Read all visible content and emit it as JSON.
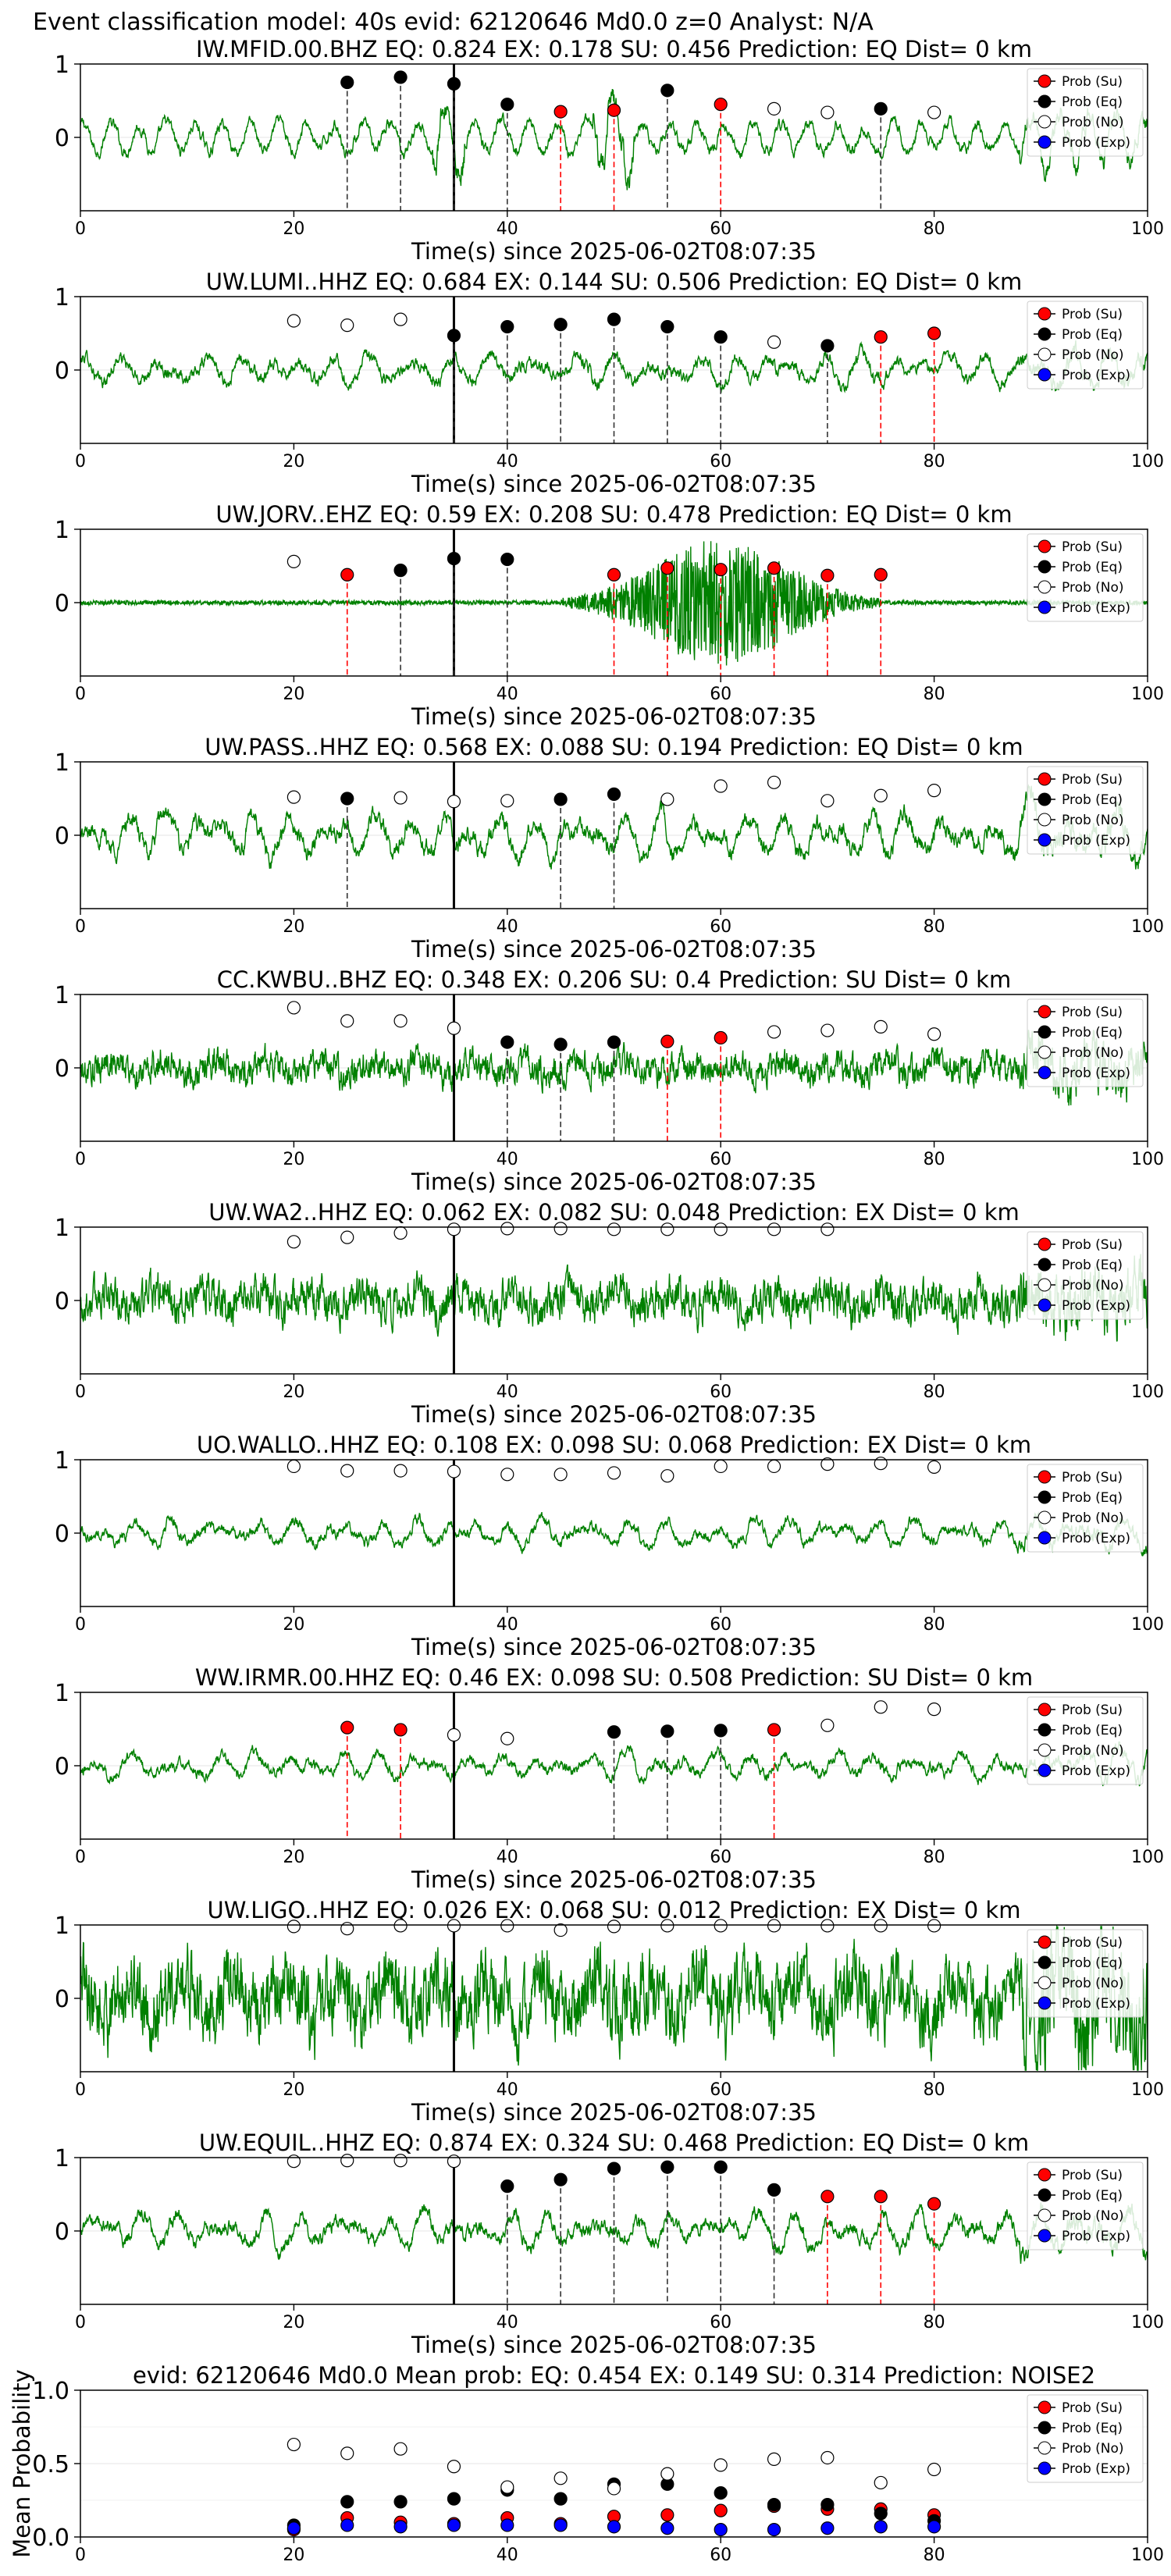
{
  "figure": {
    "suptitle": "Event classification model: 40s evid: 62120646 Md0.0 z=0 Analyst: N/A",
    "xlabel": "Time(s) since 2025-06-02T08:07:35",
    "legend": [
      {
        "label": "Prob (Su)",
        "color": "#ff0000"
      },
      {
        "label": "Prob (Eq)",
        "color": "#000000"
      },
      {
        "label": "Prob (No)",
        "color": "#ffffff"
      },
      {
        "label": "Prob (Exp)",
        "color": "#0000ff"
      }
    ],
    "colors": {
      "waveform": "#008000",
      "su": "#ff0000",
      "eq": "#000000",
      "no": "#ffffff",
      "exp": "#0000ff",
      "pick_line": "#000000"
    }
  },
  "chart_data": [
    {
      "type": "line",
      "title": "IW.MFID.00.BHZ   EQ: 0.824  EX: 0.178  SU: 0.456   Prediction: EQ    Dist= 0 km",
      "xlabel": "Time(s) since 2025-06-02T08:07:35",
      "xlim": [
        0,
        100
      ],
      "ylim": [
        -1,
        1
      ],
      "xticks": [
        0,
        20,
        40,
        60,
        80,
        100
      ],
      "yticks": [
        0,
        1
      ],
      "pick_time": 35,
      "wave_amp": 0.35,
      "wave_style": "mfid",
      "markers": [
        {
          "x": 25,
          "class": "eq",
          "p": 0.75
        },
        {
          "x": 30,
          "class": "eq",
          "p": 0.82
        },
        {
          "x": 35,
          "class": "eq",
          "p": 0.73
        },
        {
          "x": 40,
          "class": "eq",
          "p": 0.45
        },
        {
          "x": 45,
          "class": "su",
          "p": 0.35
        },
        {
          "x": 50,
          "class": "su",
          "p": 0.37
        },
        {
          "x": 55,
          "class": "eq",
          "p": 0.64
        },
        {
          "x": 60,
          "class": "su",
          "p": 0.45
        },
        {
          "x": 65,
          "class": "no",
          "p": 0.39
        },
        {
          "x": 70,
          "class": "no",
          "p": 0.34
        },
        {
          "x": 75,
          "class": "eq",
          "p": 0.39
        },
        {
          "x": 80,
          "class": "no",
          "p": 0.34
        }
      ]
    },
    {
      "type": "line",
      "title": "UW.LUMI..HHZ   EQ: 0.684  EX: 0.144  SU: 0.506   Prediction: EQ    Dist= 0 km",
      "xlabel": "Time(s) since 2025-06-02T08:07:35",
      "xlim": [
        0,
        100
      ],
      "ylim": [
        -1,
        1
      ],
      "xticks": [
        0,
        20,
        40,
        60,
        80,
        100
      ],
      "yticks": [
        0,
        1
      ],
      "pick_time": 35,
      "wave_amp": 0.35,
      "wave_style": "osc",
      "markers": [
        {
          "x": 20,
          "class": "no",
          "p": 0.67
        },
        {
          "x": 25,
          "class": "no",
          "p": 0.61
        },
        {
          "x": 30,
          "class": "no",
          "p": 0.69
        },
        {
          "x": 35,
          "class": "eq",
          "p": 0.47
        },
        {
          "x": 40,
          "class": "eq",
          "p": 0.59
        },
        {
          "x": 45,
          "class": "eq",
          "p": 0.62
        },
        {
          "x": 50,
          "class": "eq",
          "p": 0.69
        },
        {
          "x": 55,
          "class": "eq",
          "p": 0.59
        },
        {
          "x": 60,
          "class": "eq",
          "p": 0.45
        },
        {
          "x": 65,
          "class": "no",
          "p": 0.38
        },
        {
          "x": 70,
          "class": "eq",
          "p": 0.33
        },
        {
          "x": 75,
          "class": "su",
          "p": 0.45
        },
        {
          "x": 80,
          "class": "su",
          "p": 0.5
        }
      ]
    },
    {
      "type": "line",
      "title": "UW.JORV..EHZ   EQ: 0.59  EX: 0.208  SU: 0.478   Prediction: EQ    Dist= 0 km",
      "xlabel": "Time(s) since 2025-06-02T08:07:35",
      "xlim": [
        0,
        100
      ],
      "ylim": [
        -1,
        1
      ],
      "xticks": [
        0,
        20,
        40,
        60,
        80,
        100
      ],
      "yticks": [
        0,
        1
      ],
      "pick_time": 35,
      "wave_amp": 0.9,
      "wave_style": "event",
      "markers": [
        {
          "x": 20,
          "class": "no",
          "p": 0.56
        },
        {
          "x": 25,
          "class": "su",
          "p": 0.38
        },
        {
          "x": 30,
          "class": "eq",
          "p": 0.44
        },
        {
          "x": 35,
          "class": "eq",
          "p": 0.6
        },
        {
          "x": 40,
          "class": "eq",
          "p": 0.59
        },
        {
          "x": 50,
          "class": "su",
          "p": 0.38
        },
        {
          "x": 55,
          "class": "su",
          "p": 0.47
        },
        {
          "x": 60,
          "class": "su",
          "p": 0.45
        },
        {
          "x": 65,
          "class": "su",
          "p": 0.47
        },
        {
          "x": 70,
          "class": "su",
          "p": 0.37
        },
        {
          "x": 75,
          "class": "su",
          "p": 0.38
        }
      ]
    },
    {
      "type": "line",
      "title": "UW.PASS..HHZ   EQ: 0.568  EX: 0.088  SU: 0.194   Prediction: EQ    Dist= 0 km",
      "xlabel": "Time(s) since 2025-06-02T08:07:35",
      "xlim": [
        0,
        100
      ],
      "ylim": [
        -1,
        1
      ],
      "xticks": [
        0,
        20,
        40,
        60,
        80,
        100
      ],
      "yticks": [
        0,
        1
      ],
      "pick_time": 35,
      "wave_amp": 0.5,
      "wave_style": "osc",
      "markers": [
        {
          "x": 20,
          "class": "no",
          "p": 0.52
        },
        {
          "x": 25,
          "class": "eq",
          "p": 0.5
        },
        {
          "x": 30,
          "class": "no",
          "p": 0.51
        },
        {
          "x": 35,
          "class": "no",
          "p": 0.46
        },
        {
          "x": 40,
          "class": "no",
          "p": 0.47
        },
        {
          "x": 45,
          "class": "eq",
          "p": 0.49
        },
        {
          "x": 50,
          "class": "eq",
          "p": 0.56
        },
        {
          "x": 55,
          "class": "no",
          "p": 0.49
        },
        {
          "x": 60,
          "class": "no",
          "p": 0.67
        },
        {
          "x": 65,
          "class": "no",
          "p": 0.72
        },
        {
          "x": 70,
          "class": "no",
          "p": 0.47
        },
        {
          "x": 75,
          "class": "no",
          "p": 0.54
        },
        {
          "x": 80,
          "class": "no",
          "p": 0.61
        }
      ]
    },
    {
      "type": "line",
      "title": "CC.KWBU..BHZ   EQ: 0.348  EX: 0.206  SU: 0.4   Prediction: SU    Dist= 0 km",
      "xlabel": "Time(s) since 2025-06-02T08:07:35",
      "xlim": [
        0,
        100
      ],
      "ylim": [
        -1,
        1
      ],
      "xticks": [
        0,
        20,
        40,
        60,
        80,
        100
      ],
      "yticks": [
        0,
        1
      ],
      "pick_time": 35,
      "wave_amp": 0.35,
      "wave_style": "noise",
      "markers": [
        {
          "x": 20,
          "class": "no",
          "p": 0.82
        },
        {
          "x": 25,
          "class": "no",
          "p": 0.64
        },
        {
          "x": 30,
          "class": "no",
          "p": 0.64
        },
        {
          "x": 35,
          "class": "no",
          "p": 0.54
        },
        {
          "x": 40,
          "class": "eq",
          "p": 0.35
        },
        {
          "x": 45,
          "class": "eq",
          "p": 0.32
        },
        {
          "x": 50,
          "class": "eq",
          "p": 0.35
        },
        {
          "x": 55,
          "class": "su",
          "p": 0.36
        },
        {
          "x": 60,
          "class": "su",
          "p": 0.41
        },
        {
          "x": 65,
          "class": "no",
          "p": 0.49
        },
        {
          "x": 70,
          "class": "no",
          "p": 0.51
        },
        {
          "x": 75,
          "class": "no",
          "p": 0.56
        },
        {
          "x": 80,
          "class": "no",
          "p": 0.46
        }
      ]
    },
    {
      "type": "line",
      "title": "UW.WA2..HHZ   EQ: 0.062  EX: 0.082  SU: 0.048   Prediction: EX    Dist= 0 km",
      "xlabel": "Time(s) since 2025-06-02T08:07:35",
      "xlim": [
        0,
        100
      ],
      "ylim": [
        -1,
        1
      ],
      "xticks": [
        0,
        20,
        40,
        60,
        80,
        100
      ],
      "yticks": [
        0,
        1
      ],
      "pick_time": 35,
      "wave_amp": 0.45,
      "wave_style": "noise",
      "markers": [
        {
          "x": 20,
          "class": "no",
          "p": 0.8
        },
        {
          "x": 25,
          "class": "no",
          "p": 0.86
        },
        {
          "x": 30,
          "class": "no",
          "p": 0.92
        },
        {
          "x": 35,
          "class": "no",
          "p": 0.97
        },
        {
          "x": 40,
          "class": "no",
          "p": 0.98
        },
        {
          "x": 45,
          "class": "no",
          "p": 0.98
        },
        {
          "x": 50,
          "class": "no",
          "p": 0.97
        },
        {
          "x": 55,
          "class": "no",
          "p": 0.97
        },
        {
          "x": 60,
          "class": "no",
          "p": 0.97
        },
        {
          "x": 65,
          "class": "no",
          "p": 0.97
        },
        {
          "x": 70,
          "class": "no",
          "p": 0.97
        }
      ]
    },
    {
      "type": "line",
      "title": "UO.WALLO..HHZ   EQ: 0.108  EX: 0.098  SU: 0.068   Prediction: EX    Dist= 0 km",
      "xlabel": "Time(s) since 2025-06-02T08:07:35",
      "xlim": [
        0,
        100
      ],
      "ylim": [
        -1,
        1
      ],
      "xticks": [
        0,
        20,
        40,
        60,
        80,
        100
      ],
      "yticks": [
        0,
        1
      ],
      "pick_time": 35,
      "wave_amp": 0.3,
      "wave_style": "osc",
      "markers": [
        {
          "x": 20,
          "class": "no",
          "p": 0.91
        },
        {
          "x": 25,
          "class": "no",
          "p": 0.85
        },
        {
          "x": 30,
          "class": "no",
          "p": 0.85
        },
        {
          "x": 35,
          "class": "no",
          "p": 0.84
        },
        {
          "x": 40,
          "class": "no",
          "p": 0.8
        },
        {
          "x": 45,
          "class": "no",
          "p": 0.8
        },
        {
          "x": 50,
          "class": "no",
          "p": 0.82
        },
        {
          "x": 55,
          "class": "no",
          "p": 0.78
        },
        {
          "x": 60,
          "class": "no",
          "p": 0.91
        },
        {
          "x": 65,
          "class": "no",
          "p": 0.91
        },
        {
          "x": 70,
          "class": "no",
          "p": 0.94
        },
        {
          "x": 75,
          "class": "no",
          "p": 0.95
        },
        {
          "x": 80,
          "class": "no",
          "p": 0.9
        }
      ]
    },
    {
      "type": "line",
      "title": "WW.IRMR.00.HHZ   EQ: 0.46  EX: 0.098  SU: 0.508   Prediction: SU    Dist= 0 km",
      "xlabel": "Time(s) since 2025-06-02T08:07:35",
      "xlim": [
        0,
        100
      ],
      "ylim": [
        -1,
        1
      ],
      "xticks": [
        0,
        20,
        40,
        60,
        80,
        100
      ],
      "yticks": [
        0,
        1
      ],
      "pick_time": 35,
      "wave_amp": 0.3,
      "wave_style": "osc",
      "markers": [
        {
          "x": 25,
          "class": "su",
          "p": 0.52
        },
        {
          "x": 30,
          "class": "su",
          "p": 0.49
        },
        {
          "x": 35,
          "class": "no",
          "p": 0.42
        },
        {
          "x": 40,
          "class": "no",
          "p": 0.37
        },
        {
          "x": 50,
          "class": "eq",
          "p": 0.46
        },
        {
          "x": 55,
          "class": "eq",
          "p": 0.47
        },
        {
          "x": 60,
          "class": "eq",
          "p": 0.48
        },
        {
          "x": 65,
          "class": "su",
          "p": 0.49
        },
        {
          "x": 70,
          "class": "no",
          "p": 0.55
        },
        {
          "x": 75,
          "class": "no",
          "p": 0.8
        },
        {
          "x": 80,
          "class": "no",
          "p": 0.77
        }
      ]
    },
    {
      "type": "line",
      "title": "UW.LIGO..HHZ   EQ: 0.026  EX: 0.068  SU: 0.012   Prediction: EX    Dist= 0 km",
      "xlabel": "Time(s) since 2025-06-02T08:07:35",
      "xlim": [
        0,
        100
      ],
      "ylim": [
        -1,
        1
      ],
      "xticks": [
        0,
        20,
        40,
        60,
        80,
        100
      ],
      "yticks": [
        0,
        1
      ],
      "pick_time": 35,
      "wave_amp": 0.85,
      "wave_style": "noise",
      "markers": [
        {
          "x": 20,
          "class": "no",
          "p": 0.98
        },
        {
          "x": 25,
          "class": "no",
          "p": 0.95
        },
        {
          "x": 30,
          "class": "no",
          "p": 0.99
        },
        {
          "x": 35,
          "class": "no",
          "p": 0.99
        },
        {
          "x": 40,
          "class": "no",
          "p": 0.99
        },
        {
          "x": 45,
          "class": "no",
          "p": 0.93
        },
        {
          "x": 50,
          "class": "no",
          "p": 0.98
        },
        {
          "x": 55,
          "class": "no",
          "p": 0.99
        },
        {
          "x": 60,
          "class": "no",
          "p": 0.99
        },
        {
          "x": 65,
          "class": "no",
          "p": 0.99
        },
        {
          "x": 70,
          "class": "no",
          "p": 0.99
        },
        {
          "x": 75,
          "class": "no",
          "p": 0.99
        },
        {
          "x": 80,
          "class": "no",
          "p": 0.99
        }
      ]
    },
    {
      "type": "line",
      "title": "UW.EQUIL..HHZ   EQ: 0.874  EX: 0.324  SU: 0.468   Prediction: EQ    Dist= 0 km",
      "xlabel": "Time(s) since 2025-06-02T08:07:35",
      "xlim": [
        0,
        100
      ],
      "ylim": [
        -1,
        1
      ],
      "xticks": [
        0,
        20,
        40,
        60,
        80,
        100
      ],
      "yticks": [
        0,
        1
      ],
      "pick_time": 35,
      "wave_amp": 0.4,
      "wave_style": "osc",
      "markers": [
        {
          "x": 20,
          "class": "no",
          "p": 0.95
        },
        {
          "x": 25,
          "class": "no",
          "p": 0.96
        },
        {
          "x": 30,
          "class": "no",
          "p": 0.96
        },
        {
          "x": 35,
          "class": "no",
          "p": 0.95
        },
        {
          "x": 40,
          "class": "eq",
          "p": 0.61
        },
        {
          "x": 45,
          "class": "eq",
          "p": 0.7
        },
        {
          "x": 50,
          "class": "eq",
          "p": 0.85
        },
        {
          "x": 55,
          "class": "eq",
          "p": 0.87
        },
        {
          "x": 60,
          "class": "eq",
          "p": 0.87
        },
        {
          "x": 65,
          "class": "eq",
          "p": 0.56
        },
        {
          "x": 70,
          "class": "su",
          "p": 0.47
        },
        {
          "x": 75,
          "class": "su",
          "p": 0.47
        },
        {
          "x": 80,
          "class": "su",
          "p": 0.37
        }
      ]
    },
    {
      "type": "scatter",
      "title": "evid: 62120646  Md0.0   Mean prob:   EQ: 0.454  EX: 0.149  SU: 0.314   Prediction: NOISE2",
      "ylabel": "Mean Probability",
      "xlim": [
        0,
        100
      ],
      "ylim": [
        0,
        1
      ],
      "xticks": [
        0,
        20,
        40,
        60,
        80,
        100
      ],
      "yticks": [
        0.0,
        0.5,
        1.0
      ],
      "x": [
        20,
        25,
        30,
        35,
        40,
        45,
        50,
        55,
        60,
        65,
        70,
        75,
        80
      ],
      "series": [
        {
          "name": "Prob (Su)",
          "color": "#ff0000",
          "values": [
            0.05,
            0.13,
            0.1,
            0.09,
            0.13,
            0.09,
            0.14,
            0.15,
            0.18,
            0.21,
            0.19,
            0.19,
            0.15
          ]
        },
        {
          "name": "Prob (Eq)",
          "color": "#000000",
          "values": [
            0.08,
            0.24,
            0.24,
            0.26,
            0.32,
            0.26,
            0.36,
            0.36,
            0.3,
            0.22,
            0.22,
            0.16,
            0.11
          ]
        },
        {
          "name": "Prob (No)",
          "color": "#ffffff",
          "values": [
            0.63,
            0.57,
            0.6,
            0.48,
            0.34,
            0.4,
            0.33,
            0.43,
            0.49,
            0.53,
            0.54,
            0.37,
            0.46
          ]
        },
        {
          "name": "Prob (Exp)",
          "color": "#0000ff",
          "values": [
            0.06,
            0.08,
            0.07,
            0.08,
            0.08,
            0.08,
            0.07,
            0.06,
            0.05,
            0.05,
            0.06,
            0.07,
            0.07
          ]
        }
      ]
    }
  ]
}
